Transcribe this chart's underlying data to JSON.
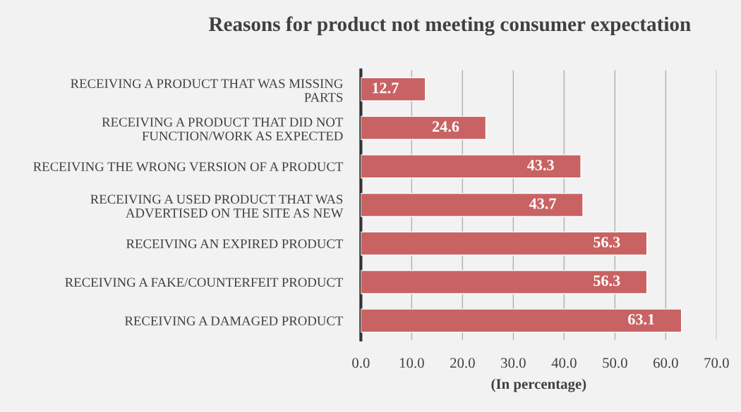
{
  "chart_data": {
    "type": "bar",
    "orientation": "horizontal",
    "title": "Reasons for product not meeting consumer expectation",
    "xlabel": "(In percentage)",
    "categories": [
      "RECEIVING A PRODUCT THAT WAS MISSING\nPARTS",
      "RECEIVING A PRODUCT THAT DID NOT\nFUNCTION/WORK AS EXPECTED",
      "RECEIVING THE WRONG VERSION OF A PRODUCT",
      "RECEIVING A USED PRODUCT THAT WAS\nADVERTISED ON THE SITE AS NEW",
      "RECEIVING AN EXPIRED PRODUCT",
      "RECEIVING A FAKE/COUNTERFEIT PRODUCT",
      "RECEIVING A DAMAGED PRODUCT"
    ],
    "values": [
      12.7,
      24.6,
      43.3,
      43.7,
      56.3,
      56.3,
      63.1
    ],
    "value_labels": [
      "12.7",
      "24.6",
      "43.3",
      "43.7",
      "56.3",
      "56.3",
      "63.1"
    ],
    "color": "#c96363",
    "xlim": [
      0,
      70
    ],
    "xticks": [
      {
        "value": 0,
        "label": "0.0"
      },
      {
        "value": 10,
        "label": "10.0"
      },
      {
        "value": 20,
        "label": "20.0"
      },
      {
        "value": 30,
        "label": "30.0"
      },
      {
        "value": 40,
        "label": "40.0"
      },
      {
        "value": 50,
        "label": "50.0"
      },
      {
        "value": 60,
        "label": "60.0"
      },
      {
        "value": 70,
        "label": "70.0"
      }
    ],
    "grid": "x",
    "legend": false
  }
}
